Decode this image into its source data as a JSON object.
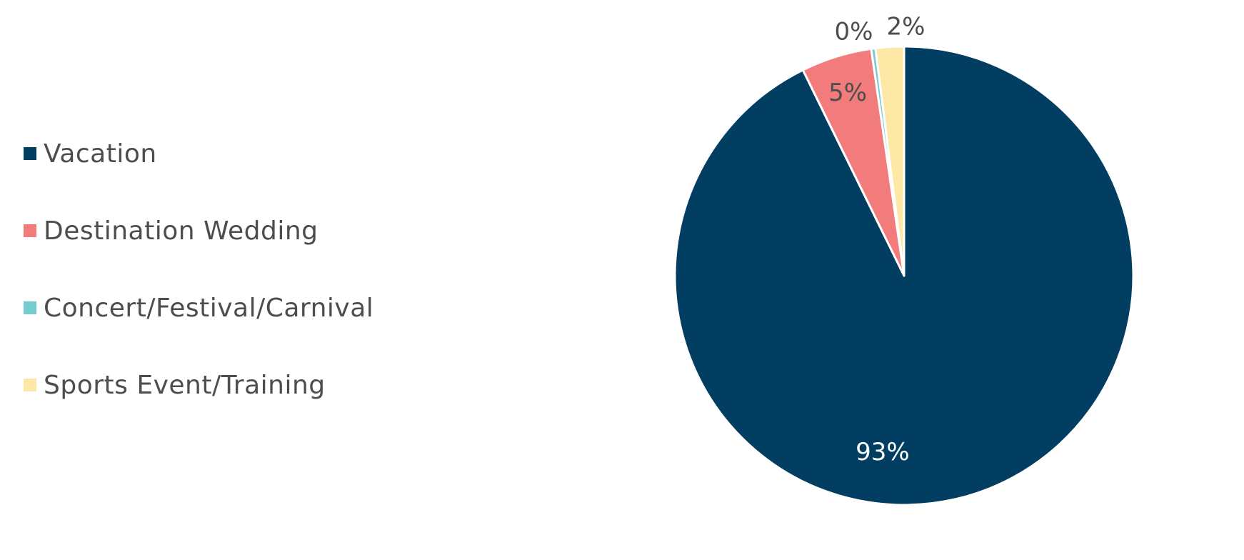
{
  "chart_data": {
    "type": "pie",
    "slices": [
      {
        "label": "Vacation",
        "value": 93,
        "value_label": "93%",
        "color": "#023e61"
      },
      {
        "label": "Destination Wedding",
        "value": 5,
        "value_label": "5%",
        "color": "#f27c7c"
      },
      {
        "label": "Concert/Festival/Carnival",
        "value": 0.3,
        "value_label": "0%",
        "color": "#76cbcf"
      },
      {
        "label": "Sports Event/Training",
        "value": 2,
        "value_label": "2%",
        "color": "#fde9a5"
      }
    ],
    "start_angle": "12 o'clock",
    "direction": "counterclockwise",
    "legend_position": "left",
    "data_label_color_dark": "#4d4d4d",
    "data_label_color_light": "#ffffff"
  }
}
